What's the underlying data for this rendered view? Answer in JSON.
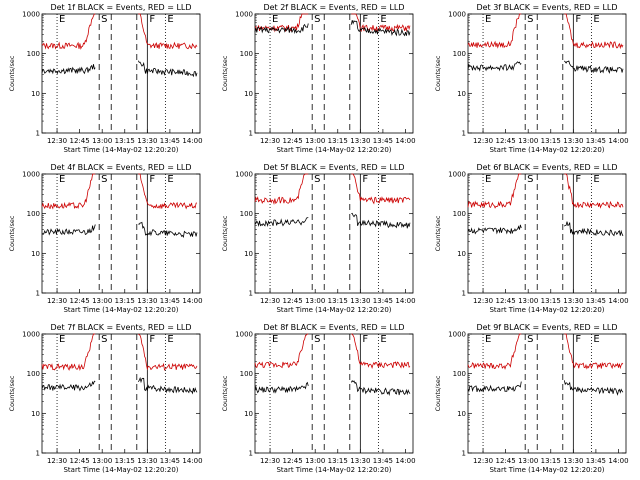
{
  "chart_data": [
    {
      "type": "line",
      "title": "Det 1f BLACK = Events, RED = LLD",
      "ylabel": "Counts/sec",
      "xlabel": "Start Time (14-May-02 12:20:20)",
      "ylog": true,
      "ylim": [
        1,
        1000
      ],
      "yticks": [
        "1",
        "10",
        "100",
        "1000"
      ],
      "xticks": [
        "12:30",
        "12:45",
        "13:00",
        "13:15",
        "13:30",
        "13:45",
        "14:00"
      ],
      "markers": [
        "E",
        "S",
        "F",
        "E"
      ],
      "series": [
        {
          "color": "#cc0000",
          "baseline": 160,
          "peak": "saturated"
        },
        {
          "color": "#000000",
          "baseline": 38
        }
      ]
    },
    {
      "type": "line",
      "title": "Det 2f BLACK = Events, RED = LLD",
      "ylabel": "Counts/sec",
      "xlabel": "Start Time (14-May-02 12:20:20)",
      "ylog": true,
      "ylim": [
        1,
        1000
      ],
      "yticks": [
        "1",
        "10",
        "100",
        "1000"
      ],
      "xticks": [
        "12:30",
        "12:45",
        "13:00",
        "13:15",
        "13:30",
        "13:45",
        "14:00"
      ],
      "markers": [
        "E",
        "S",
        "F",
        "E"
      ],
      "series": [
        {
          "color": "#cc0000",
          "baseline": 450,
          "peak": "saturated"
        },
        {
          "color": "#000000",
          "baseline": 400
        }
      ]
    },
    {
      "type": "line",
      "title": "Det 3f BLACK = Events, RED = LLD",
      "ylabel": "Counts/sec",
      "xlabel": "Start Time (14-May-02 12:20:20)",
      "ylog": true,
      "ylim": [
        1,
        1000
      ],
      "yticks": [
        "1",
        "10",
        "100",
        "1000"
      ],
      "xticks": [
        "12:30",
        "12:45",
        "13:00",
        "13:15",
        "13:30",
        "13:45",
        "14:00"
      ],
      "markers": [
        "E",
        "S",
        "F",
        "E"
      ],
      "series": [
        {
          "color": "#cc0000",
          "baseline": 170,
          "peak": "saturated"
        },
        {
          "color": "#000000",
          "baseline": 45
        }
      ]
    },
    {
      "type": "line",
      "title": "Det 4f BLACK = Events, RED = LLD",
      "ylabel": "Counts/sec",
      "xlabel": "Start Time (14-May-02 12:20:20)",
      "ylog": true,
      "ylim": [
        1,
        1000
      ],
      "yticks": [
        "1",
        "10",
        "100",
        "1000"
      ],
      "xticks": [
        "12:30",
        "12:45",
        "13:00",
        "13:15",
        "13:30",
        "13:45",
        "14:00"
      ],
      "markers": [
        "E",
        "S",
        "F",
        "E"
      ],
      "series": [
        {
          "color": "#cc0000",
          "baseline": 160,
          "peak": "saturated"
        },
        {
          "color": "#000000",
          "baseline": 35
        }
      ]
    },
    {
      "type": "line",
      "title": "Det 5f BLACK = Events, RED = LLD",
      "ylabel": "Counts/sec",
      "xlabel": "Start Time (14-May-02 12:20:20)",
      "ylog": true,
      "ylim": [
        1,
        1000
      ],
      "yticks": [
        "1",
        "10",
        "100",
        "1000"
      ],
      "xticks": [
        "12:30",
        "12:45",
        "13:00",
        "13:15",
        "13:30",
        "13:45",
        "14:00"
      ],
      "markers": [
        "E",
        "S",
        "F",
        "E"
      ],
      "series": [
        {
          "color": "#cc0000",
          "baseline": 220,
          "peak": "saturated"
        },
        {
          "color": "#000000",
          "baseline": 60
        }
      ]
    },
    {
      "type": "line",
      "title": "Det 6f BLACK = Events, RED = LLD",
      "ylabel": "Counts/sec",
      "xlabel": "Start Time (14-May-02 12:20:20)",
      "ylog": true,
      "ylim": [
        1,
        1000
      ],
      "yticks": [
        "1",
        "10",
        "100",
        "1000"
      ],
      "xticks": [
        "12:30",
        "12:45",
        "13:00",
        "13:15",
        "13:30",
        "13:45",
        "14:00"
      ],
      "markers": [
        "E",
        "S",
        "F",
        "E"
      ],
      "series": [
        {
          "color": "#cc0000",
          "baseline": 170,
          "peak": "saturated"
        },
        {
          "color": "#000000",
          "baseline": 38
        }
      ]
    },
    {
      "type": "line",
      "title": "Det 7f BLACK = Events, RED = LLD",
      "ylabel": "Counts/sec",
      "xlabel": "Start Time (14-May-02 12:20:20)",
      "ylog": true,
      "ylim": [
        1,
        1000
      ],
      "yticks": [
        "1",
        "10",
        "100",
        "1000"
      ],
      "xticks": [
        "12:30",
        "12:45",
        "13:00",
        "13:15",
        "13:30",
        "13:45",
        "14:00"
      ],
      "markers": [
        "E",
        "S",
        "F",
        "E"
      ],
      "series": [
        {
          "color": "#cc0000",
          "baseline": 150,
          "peak": "saturated"
        },
        {
          "color": "#000000",
          "baseline": 45
        }
      ]
    },
    {
      "type": "line",
      "title": "Det 8f BLACK = Events, RED = LLD",
      "ylabel": "Counts/sec",
      "xlabel": "Start Time (14-May-02 12:20:20)",
      "ylog": true,
      "ylim": [
        1,
        1000
      ],
      "yticks": [
        "1",
        "10",
        "100",
        "1000"
      ],
      "xticks": [
        "12:30",
        "12:45",
        "13:00",
        "13:15",
        "13:30",
        "13:45",
        "14:00"
      ],
      "markers": [
        "E",
        "S",
        "F",
        "E"
      ],
      "series": [
        {
          "color": "#cc0000",
          "baseline": 170,
          "peak": "saturated"
        },
        {
          "color": "#000000",
          "baseline": 40
        }
      ]
    },
    {
      "type": "line",
      "title": "Det 9f BLACK = Events, RED = LLD",
      "ylabel": "Counts/sec",
      "xlabel": "Start Time (14-May-02 12:20:20)",
      "ylog": true,
      "ylim": [
        1,
        1000
      ],
      "yticks": [
        "1",
        "10",
        "100",
        "1000"
      ],
      "xticks": [
        "12:30",
        "12:45",
        "13:00",
        "13:15",
        "13:30",
        "13:45",
        "14:00"
      ],
      "markers": [
        "E",
        "S",
        "F",
        "E"
      ],
      "series": [
        {
          "color": "#cc0000",
          "baseline": 160,
          "peak": "saturated"
        },
        {
          "color": "#000000",
          "baseline": 42
        }
      ]
    }
  ]
}
